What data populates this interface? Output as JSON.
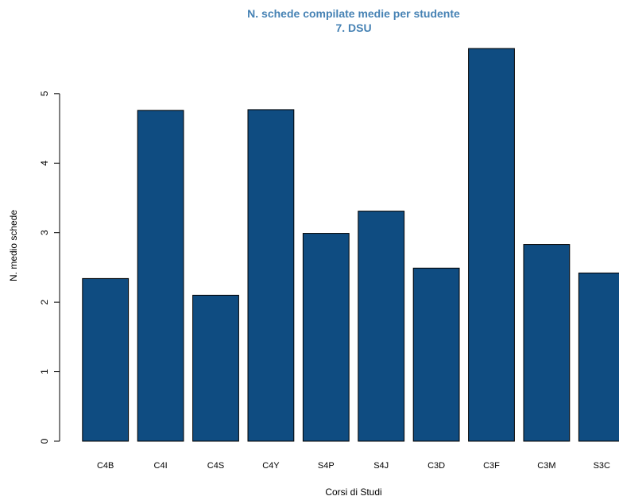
{
  "chart_data": {
    "type": "bar",
    "title": "N. schede compilate medie per studente",
    "subtitle": "7. DSU",
    "title_color": "#4682B4",
    "bar_color": "#0F4C81",
    "bar_border_color": "#000000",
    "xlabel": "Corsi di Studi",
    "ylabel": "N. medio schede",
    "categories": [
      "C4B",
      "C4I",
      "C4S",
      "C4Y",
      "S4P",
      "S4J",
      "C3D",
      "C3F",
      "C3M",
      "S3C"
    ],
    "values": [
      2.34,
      4.76,
      2.1,
      4.77,
      2.99,
      3.31,
      2.49,
      5.65,
      2.83,
      2.42
    ],
    "ylim": [
      0,
      5.65
    ],
    "yticks": [
      0,
      1,
      2,
      3,
      4,
      5
    ],
    "grid": false,
    "legend": "none"
  }
}
